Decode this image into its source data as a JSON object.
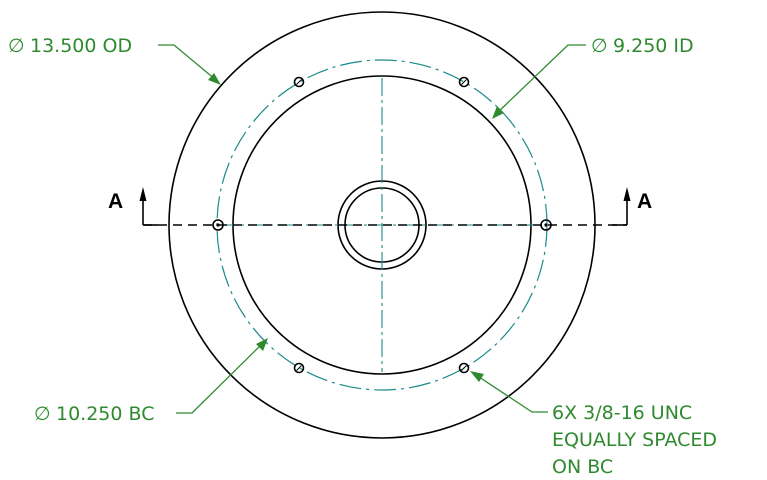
{
  "section_label": "A",
  "callouts": {
    "od": {
      "symbol": "∅",
      "text": "13.500 OD"
    },
    "id": {
      "symbol": "∅",
      "text": "9.250 ID"
    },
    "bc": {
      "symbol": "∅",
      "text": "10.250 BC"
    },
    "holes": {
      "line1": "6X 3/8-16 UNC",
      "line2": "EQUALLY SPACED",
      "line3": "ON BC"
    }
  },
  "colors": {
    "annotation": "#2f8a2f",
    "centerline": "#1a8a8a",
    "geometry": "#000000"
  }
}
